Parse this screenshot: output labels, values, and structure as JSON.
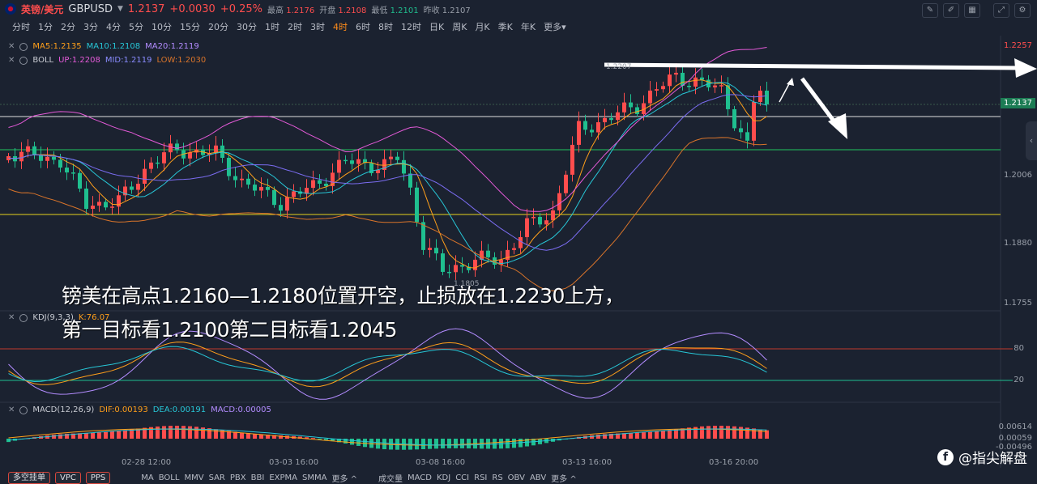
{
  "header": {
    "symbol_cn": "英镑/美元",
    "symbol_code": "GBPUSD",
    "last": "1.2137",
    "change": "+0.0030",
    "change_pct": "+0.25%",
    "high_label": "最高",
    "high": "1.2176",
    "open_label": "开盘",
    "open": "1.2108",
    "low_label": "最低",
    "low": "1.2101",
    "prev_label": "昨收",
    "prev": "1.2107"
  },
  "timeframes": [
    "分时",
    "1分",
    "2分",
    "3分",
    "4分",
    "5分",
    "10分",
    "15分",
    "20分",
    "30分",
    "1时",
    "2时",
    "3时",
    "4时",
    "6时",
    "8时",
    "12时",
    "日K",
    "周K",
    "月K",
    "季K",
    "年K",
    "更多"
  ],
  "active_timeframe": "4时",
  "indicators": {
    "ma": {
      "ma5": "MA5:1.2135",
      "ma10": "MA10:1.2108",
      "ma20": "MA20:1.2119"
    },
    "boll": {
      "name": "BOLL",
      "up": "UP:1.2208",
      "mid": "MID:1.2119",
      "low": "LOW:1.2030"
    },
    "kdj": {
      "name": "KDJ(9,3,3)",
      "k": "K:76.07"
    },
    "macd": {
      "name": "MACD(12,26,9)",
      "dif": "DIF:0.00193",
      "dea": "DEA:0.00191",
      "macd": "MACD:0.00005"
    }
  },
  "axis": {
    "price_ticks": [
      "1.2257",
      "1.2006",
      "1.1880",
      "1.1755"
    ],
    "current_price_tag": "1.2137",
    "kdj_ticks": [
      "80",
      "20"
    ],
    "macd_ticks": [
      "0.00614",
      "0.00059",
      "-0.00496"
    ],
    "time_labels": [
      "02-28 12:00",
      "03-03 16:00",
      "03-08 16:00",
      "03-13 16:00",
      "03-16 20:00"
    ],
    "high_marker": "1.2207",
    "low_marker": "1.1805"
  },
  "annotation": {
    "line1": "镑美在高点1.2160—1.2180位置开空，止损放在1.2230上方，",
    "line2": "第一目标看1.2100第二目标看1.2045"
  },
  "bottom": {
    "buttons": [
      "多空挂单",
      "VPC",
      "PPS"
    ],
    "main_inds": [
      "MA",
      "BOLL",
      "MMV",
      "SAR",
      "PBX",
      "BBI",
      "EXPMA",
      "SMMA",
      "更多"
    ],
    "sub_inds": [
      "成交量",
      "MACD",
      "KDJ",
      "CCI",
      "RSI",
      "RS",
      "OBV",
      "ABV",
      "更多"
    ]
  },
  "watermark": "@指尖解盘",
  "colors": {
    "up": "#ff4d4d",
    "down": "#1fbf8f",
    "ma5": "#ff9f1a",
    "ma10": "#27c6d6",
    "ma20": "#7a6cf0",
    "boll_up": "#e45ad8",
    "boll_low": "#d9742a"
  }
}
